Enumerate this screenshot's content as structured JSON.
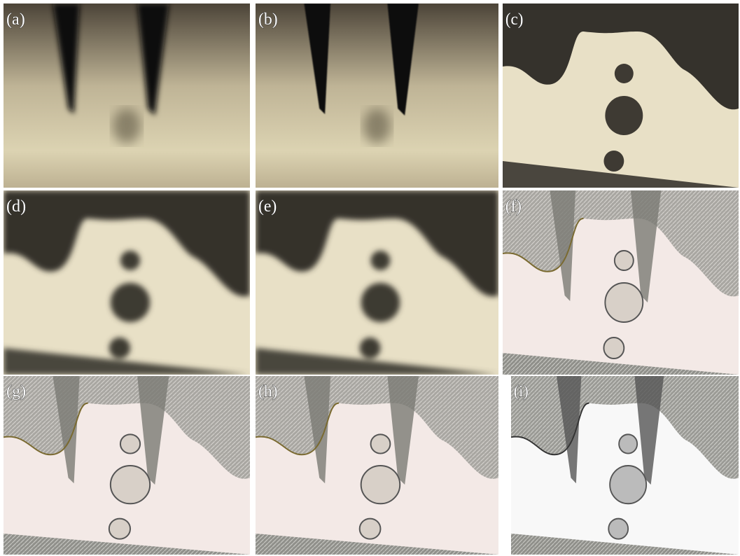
{
  "panels": [
    {
      "label": "(a)"
    },
    {
      "label": "(b)"
    },
    {
      "label": "(c)"
    },
    {
      "label": "(d)"
    },
    {
      "label": "(e)"
    },
    {
      "label": "(f)"
    },
    {
      "label": "(g)"
    },
    {
      "label": "(h)"
    },
    {
      "label": "(i)"
    }
  ]
}
